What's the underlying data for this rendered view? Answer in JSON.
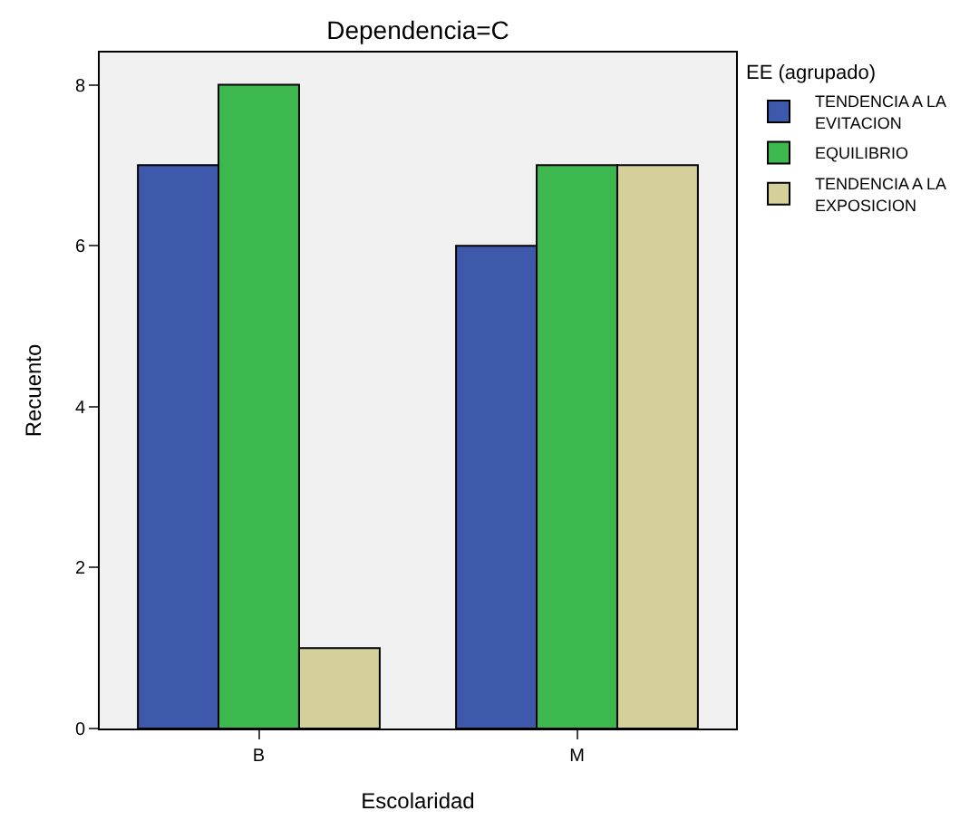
{
  "chart_data": {
    "type": "bar",
    "title": "Dependencia=C",
    "xlabel": "Escolaridad",
    "ylabel": "Recuento",
    "legend_title": "EE (agrupado)",
    "categories": [
      "B",
      "M"
    ],
    "series": [
      {
        "name": "TENDENCIA A LA EVITACION",
        "color": "#3e58ac",
        "values": [
          7,
          6
        ]
      },
      {
        "name": "EQUILIBRIO",
        "color": "#3cb84e",
        "values": [
          8,
          7
        ]
      },
      {
        "name": "TENDENCIA A LA EXPOSICION",
        "color": "#d5d09a",
        "values": [
          1,
          7
        ]
      }
    ],
    "ylim": [
      0,
      8.4
    ],
    "yticks": [
      0,
      2,
      4,
      6,
      8
    ],
    "grid": false,
    "legend": "top right"
  }
}
